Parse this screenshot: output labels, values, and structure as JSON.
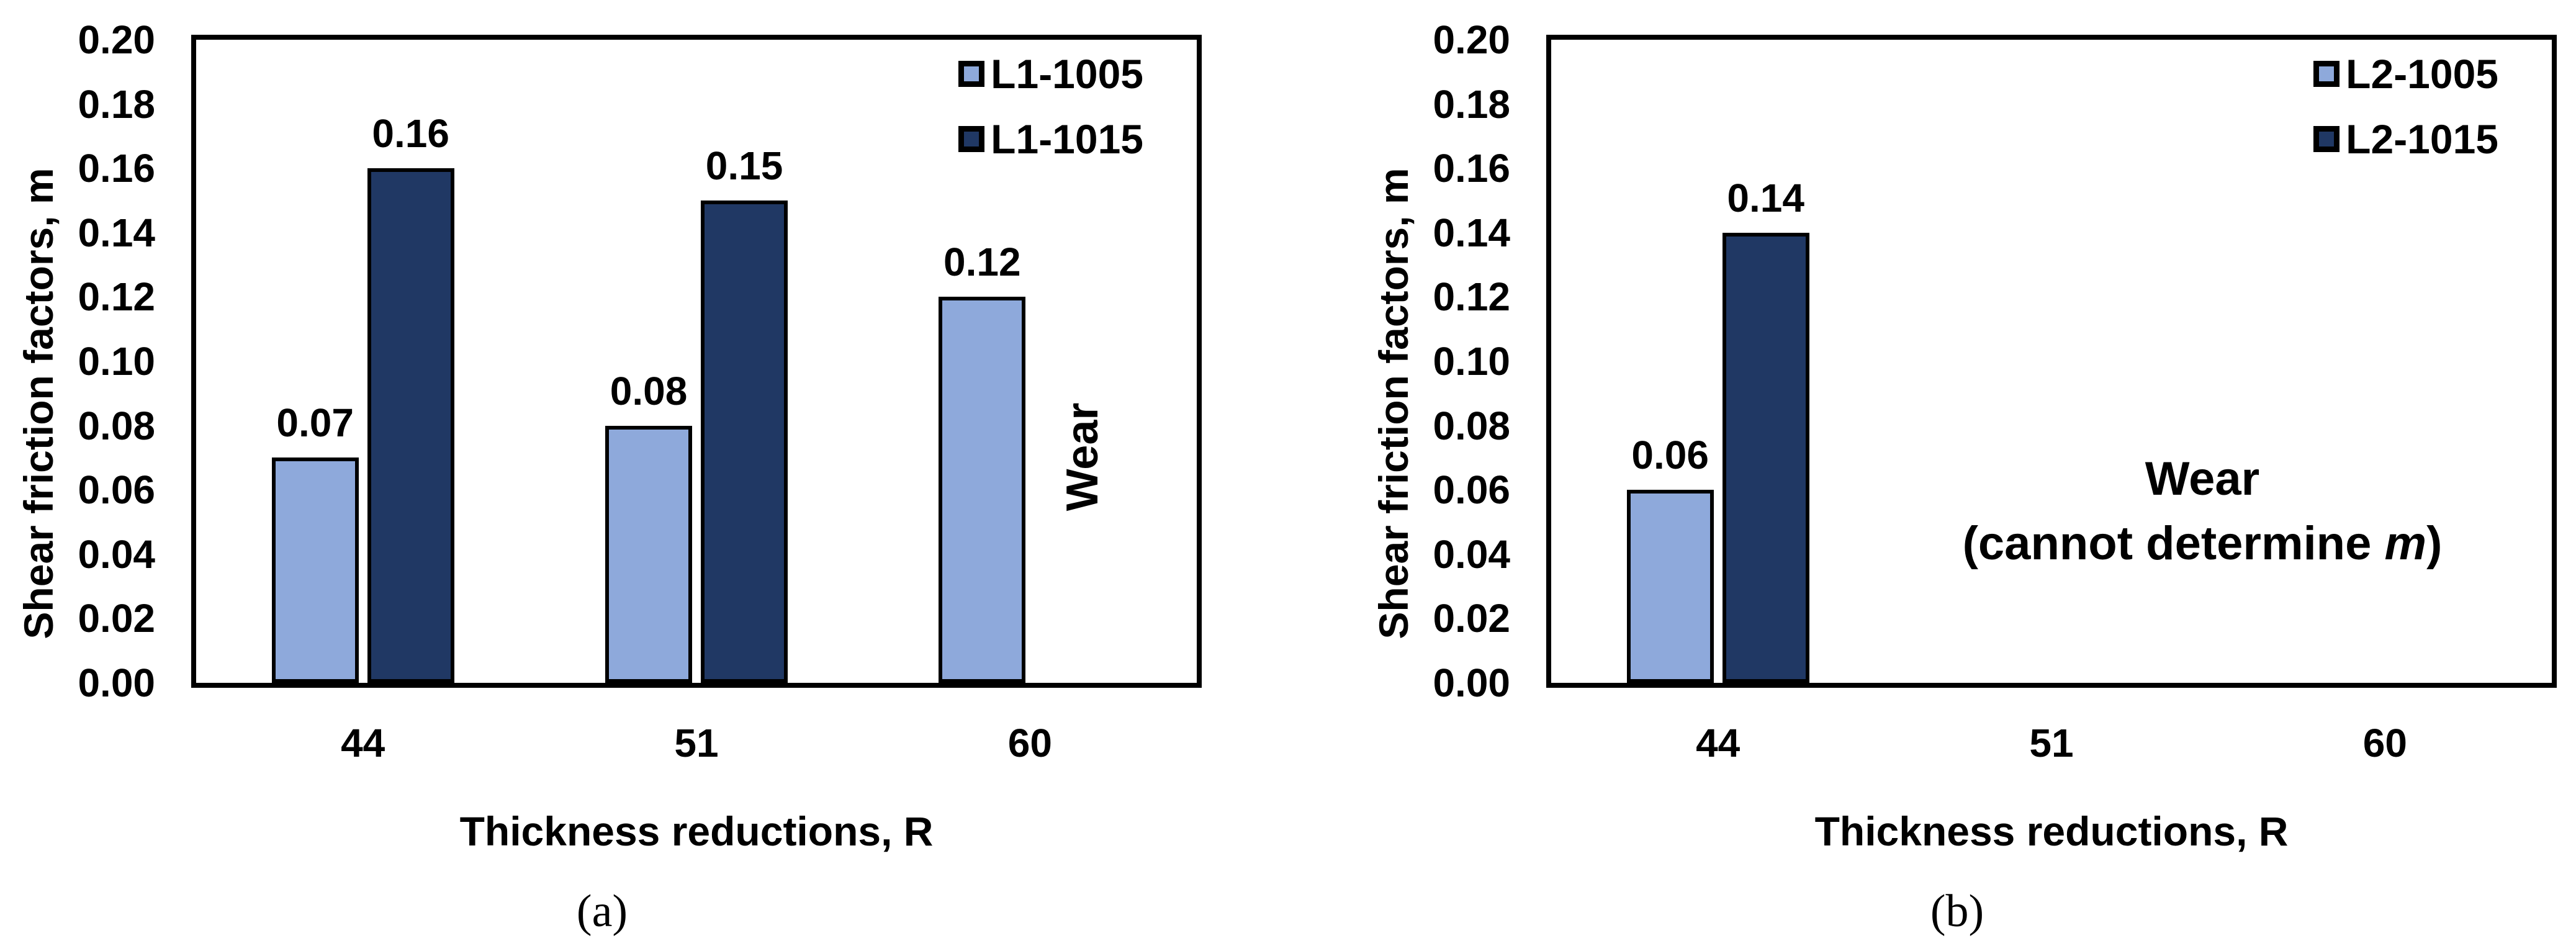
{
  "figure": {
    "background": "#FFFFFF",
    "axis_color": "#000000",
    "bar_outline_color": "#000000",
    "series_palette": {
      "light_blue": "#8EA9DB",
      "dark_navy": "#203864"
    },
    "yticks": [
      "0.20",
      "0.18",
      "0.16",
      "0.14",
      "0.12",
      "0.10",
      "0.08",
      "0.06",
      "0.04",
      "0.02",
      "0.00"
    ]
  },
  "chart_data": [
    {
      "type": "bar",
      "panel_caption": "(a)",
      "xlabel": "Thickness reductions, R",
      "ylabel": "Shear friction factors, m",
      "categories": [
        "44",
        "51",
        "60"
      ],
      "ylim": [
        0,
        0.2
      ],
      "grid": false,
      "legend_position": "top-right-inside",
      "series": [
        {
          "name": "L1-1005",
          "color": "#8EA9DB",
          "values": [
            0.07,
            0.08,
            0.12
          ],
          "labels": [
            "0.07",
            "0.08",
            "0.12"
          ]
        },
        {
          "name": "L1-1015",
          "color": "#203864",
          "values": [
            0.16,
            0.15,
            null
          ],
          "labels": [
            "0.16",
            "0.15",
            null
          ]
        }
      ],
      "annotation": {
        "orientation": "vertical",
        "text": "Wear"
      }
    },
    {
      "type": "bar",
      "panel_caption": "(b)",
      "xlabel": "Thickness reductions, R",
      "ylabel": "Shear friction factors, m",
      "categories": [
        "44",
        "51",
        "60"
      ],
      "ylim": [
        0,
        0.2
      ],
      "grid": false,
      "legend_position": "top-right-inside",
      "series": [
        {
          "name": "L2-1005",
          "color": "#8EA9DB",
          "values": [
            0.06,
            null,
            null
          ],
          "labels": [
            "0.06",
            null,
            null
          ]
        },
        {
          "name": "L2-1015",
          "color": "#203864",
          "values": [
            0.14,
            null,
            null
          ],
          "labels": [
            "0.14",
            null,
            null
          ]
        }
      ],
      "annotation": {
        "orientation": "horizontal",
        "line1": "Wear",
        "line2_pre": "(cannot determine ",
        "line2_italic": "m",
        "line2_post": ")"
      }
    }
  ]
}
